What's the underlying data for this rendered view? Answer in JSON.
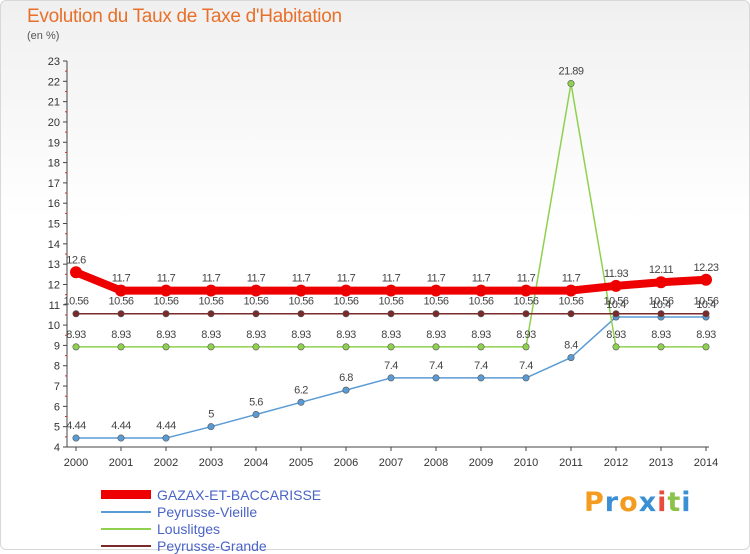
{
  "header": {
    "title": "Evolution du Taux de Taxe d'Habitation",
    "unit": "(en %)"
  },
  "logo": {
    "text": "Proxiti",
    "letter_colors": [
      "#f39c1f",
      "#3b8fd4",
      "#f39c1f",
      "#3b8fd4",
      "#e74c3c",
      "#8bc34a",
      "#3b8fd4"
    ]
  },
  "chart_data": {
    "type": "line",
    "title": "Evolution du Taux de Taxe d'Habitation",
    "ylabel": "(en %)",
    "xlabel": "",
    "x": [
      "2000",
      "2001",
      "2002",
      "2003",
      "2004",
      "2005",
      "2006",
      "2007",
      "2008",
      "2009",
      "2010",
      "2011",
      "2012",
      "2013",
      "2014"
    ],
    "ylim": [
      4,
      23
    ],
    "yticks": [
      "4",
      "5",
      "6",
      "7",
      "8",
      "9",
      "10",
      "11",
      "12",
      "13",
      "14",
      "15",
      "16",
      "17",
      "18",
      "19",
      "20",
      "21",
      "22",
      "23"
    ],
    "grid": false,
    "legend_position": "bottom-left",
    "series": [
      {
        "name": "GAZAX-ET-BACCARISSE",
        "color": "#ee0000",
        "style": "thick",
        "values": [
          12.6,
          11.7,
          11.7,
          11.7,
          11.7,
          11.7,
          11.7,
          11.7,
          11.7,
          11.7,
          11.7,
          11.7,
          11.93,
          12.11,
          12.23
        ],
        "labels": [
          "12.6",
          "11.7",
          "11.7",
          "11.7",
          "11.7",
          "11.7",
          "11.7",
          "11.7",
          "11.7",
          "11.7",
          "11.7",
          "11.7",
          "11.93",
          "12.11",
          "12.23"
        ]
      },
      {
        "name": "Peyrusse-Vieille",
        "color": "#5b9bd5",
        "style": "thin",
        "values": [
          4.44,
          4.44,
          4.44,
          5,
          5.6,
          6.2,
          6.8,
          7.4,
          7.4,
          7.4,
          7.4,
          8.4,
          10.4,
          10.4,
          10.4
        ],
        "labels": [
          "4.44",
          "4.44",
          "4.44",
          "5",
          "5.6",
          "6.2",
          "6.8",
          "7.4",
          "7.4",
          "7.4",
          "7.4",
          "8.4",
          "10.4",
          "10.4",
          "10.4"
        ]
      },
      {
        "name": "Louslitges",
        "color": "#8fd14f",
        "style": "thin",
        "values": [
          8.93,
          8.93,
          8.93,
          8.93,
          8.93,
          8.93,
          8.93,
          8.93,
          8.93,
          8.93,
          8.93,
          21.89,
          8.93,
          8.93,
          8.93
        ],
        "labels": [
          "8.93",
          "8.93",
          "8.93",
          "8.93",
          "8.93",
          "8.93",
          "8.93",
          "8.93",
          "8.93",
          "8.93",
          "8.93",
          "21.89",
          "8.93",
          "8.93",
          "8.93"
        ]
      },
      {
        "name": "Peyrusse-Grande",
        "color": "#7a2a2a",
        "style": "thin",
        "values": [
          10.56,
          10.56,
          10.56,
          10.56,
          10.56,
          10.56,
          10.56,
          10.56,
          10.56,
          10.56,
          10.56,
          10.56,
          10.56,
          10.56,
          10.56
        ],
        "labels": [
          "10.56",
          "10.56",
          "10.56",
          "10.56",
          "10.56",
          "10.56",
          "10.56",
          "10.56",
          "10.56",
          "10.56",
          "10.56",
          "10.56",
          "10.56",
          "10.56",
          "10.56"
        ]
      }
    ]
  }
}
